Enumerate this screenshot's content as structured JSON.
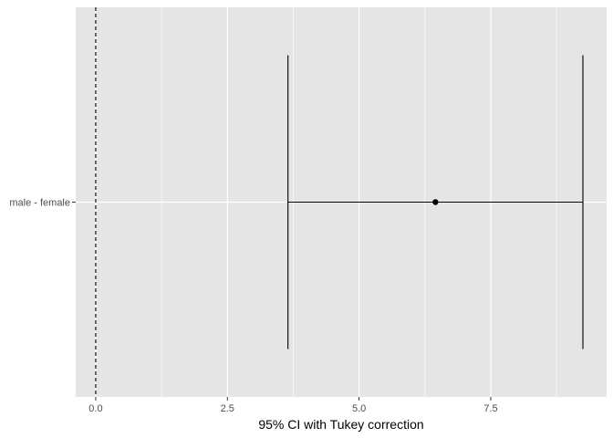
{
  "chart_data": {
    "type": "errorbar",
    "title": "",
    "xlabel": "95% CI with Tukey correction",
    "ylabel": "",
    "xlim": [
      -0.38,
      9.7
    ],
    "x_ticks": [
      0.0,
      2.5,
      5.0,
      7.5
    ],
    "x_tick_labels": [
      "0.0",
      "2.5",
      "5.0",
      "7.5"
    ],
    "categories": [
      "male - female"
    ],
    "estimates": [
      {
        "label": "male - female",
        "estimate": 6.45,
        "lower": 3.65,
        "upper": 9.25
      }
    ],
    "reference_line": {
      "x": 0,
      "style": "dashed"
    },
    "grid": true,
    "legend": "none",
    "colors": {
      "panel": "#e5e5e5",
      "grid": "#ffffff",
      "mark": "#000000",
      "tick_text": "#4d4d4d"
    }
  }
}
